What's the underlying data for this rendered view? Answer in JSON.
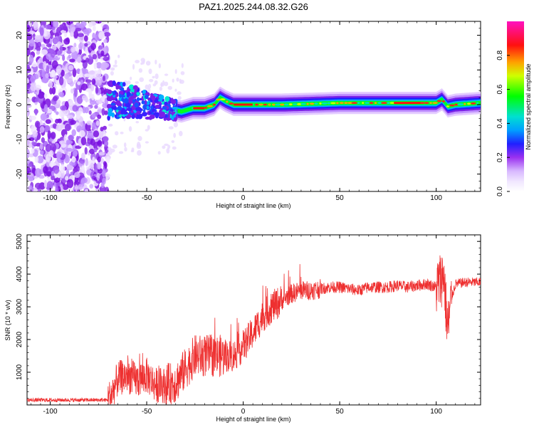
{
  "chart_data": [
    {
      "type": "heatmap",
      "title": "PAZ1.2025.244.08.32.G26",
      "xlabel": "Height of straight line (km)",
      "ylabel": "Frequency (Hz)",
      "xlim": [
        -112,
        123
      ],
      "ylim": [
        -25,
        24
      ],
      "xticks": [
        -100,
        -50,
        0,
        50,
        100
      ],
      "yticks": [
        -20,
        -10,
        0,
        10,
        20
      ],
      "xtick_labels": [
        "-100",
        "-50",
        "0",
        "50",
        "100"
      ],
      "ytick_labels": [
        "-20",
        "-10",
        "0",
        "10",
        "20"
      ],
      "colorbar": {
        "label": "Normalized spectral amplitude",
        "range": [
          0,
          1
        ],
        "ticks": [
          0,
          0.2,
          0.4,
          0.6,
          0.8
        ],
        "tick_labels": [
          "0.0",
          "0.2",
          "0.4",
          "0.6",
          "0.8"
        ]
      },
      "ridge": {
        "description_points_x": [
          -70,
          -60,
          -50,
          -40,
          -32,
          -26,
          -20,
          -15,
          -12,
          -9,
          -5,
          0,
          20,
          50,
          80,
          95,
          100,
          103,
          106,
          110,
          123
        ],
        "frequency_hz": [
          1.5,
          1.0,
          0.0,
          -1.0,
          -2.0,
          -1.0,
          -1.0,
          0.0,
          2.0,
          1.0,
          0.0,
          0.0,
          0.0,
          0.5,
          0.5,
          0.5,
          0.5,
          1.5,
          -0.5,
          0.0,
          0.5
        ]
      }
    },
    {
      "type": "line",
      "xlabel": "Height of straight line (km)",
      "ylabel": "SNR (10 * v/v)",
      "xlim": [
        -112,
        123
      ],
      "ylim": [
        0,
        5200
      ],
      "xticks": [
        -100,
        -50,
        0,
        50,
        100
      ],
      "yticks": [
        1000,
        2000,
        3000,
        4000,
        5000
      ],
      "xtick_labels": [
        "-100",
        "-50",
        "0",
        "50",
        "100"
      ],
      "ytick_labels": [
        "1000",
        "2000",
        "3000",
        "4000",
        "5000"
      ],
      "series": [
        {
          "name": "SNR",
          "color": "#ee3030",
          "x": [
            -112,
            -100,
            -80,
            -70,
            -68,
            -65,
            -60,
            -55,
            -50,
            -45,
            -40,
            -35,
            -30,
            -25,
            -20,
            -15,
            -10,
            -5,
            0,
            5,
            10,
            15,
            20,
            25,
            30,
            35,
            40,
            45,
            50,
            55,
            60,
            65,
            70,
            75,
            80,
            85,
            90,
            95,
            100,
            102,
            104,
            105,
            106,
            108,
            110,
            115,
            123
          ],
          "values": [
            150,
            150,
            150,
            150,
            350,
            800,
            900,
            750,
            900,
            600,
            600,
            700,
            1100,
            1500,
            1500,
            1500,
            1500,
            1500,
            1800,
            2200,
            2700,
            3000,
            3200,
            3400,
            3500,
            3500,
            3550,
            3600,
            3600,
            3550,
            3500,
            3600,
            3600,
            3600,
            3650,
            3600,
            3650,
            3700,
            3600,
            3800,
            4000,
            3000,
            2300,
            3300,
            3700,
            3750,
            3750
          ]
        }
      ]
    }
  ]
}
